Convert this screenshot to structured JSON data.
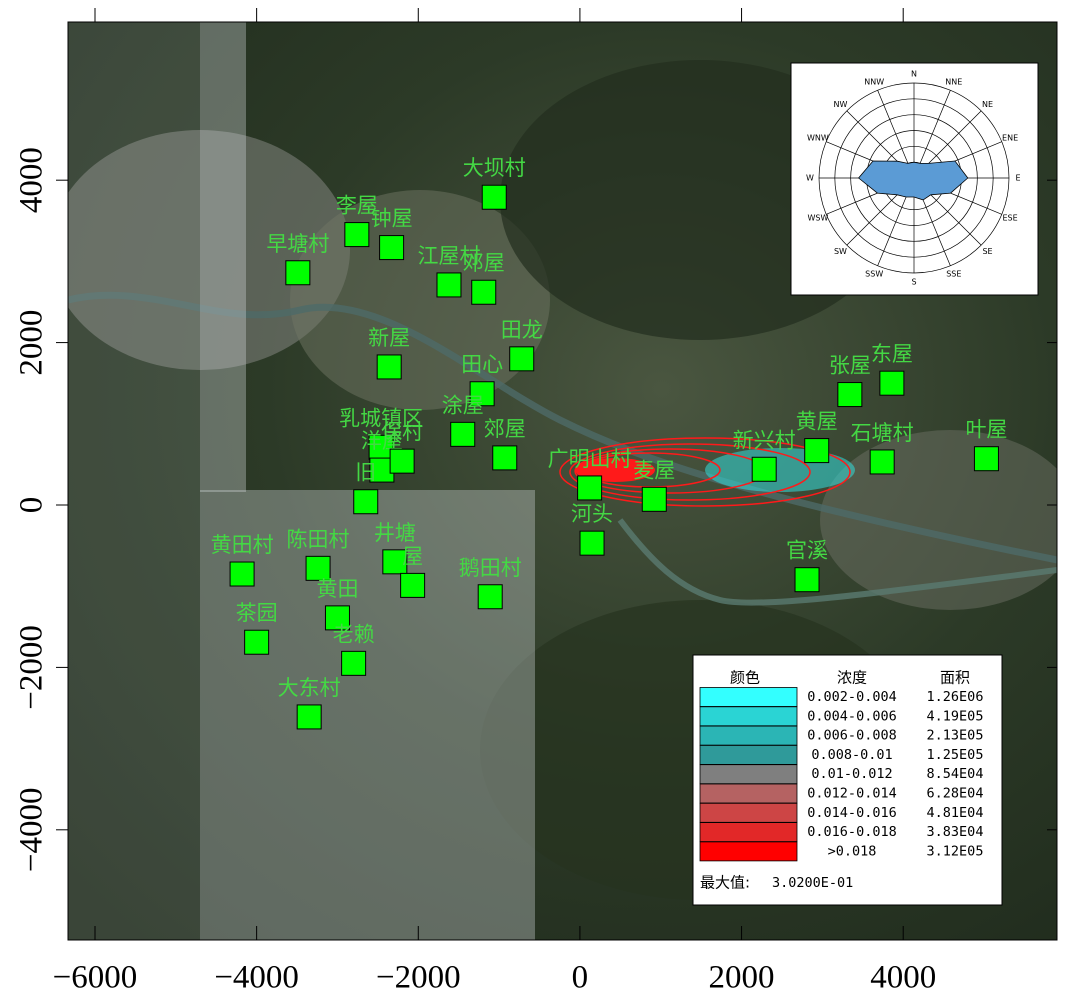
{
  "chart_data": {
    "type": "map",
    "xlim": [
      -6334,
      5903
    ],
    "ylim": [
      -5357,
      5948
    ],
    "xticks": [
      {
        "value": -6000,
        "label": "−6000"
      },
      {
        "value": -4000,
        "label": "−4000"
      },
      {
        "value": -2000,
        "label": "−2000"
      },
      0,
      2000,
      4000
    ],
    "yticks": [
      {
        "value": -4000,
        "label": "−4000"
      },
      {
        "value": -2000,
        "label": "−2000"
      },
      0,
      2000,
      4000
    ],
    "points": {
      "color": "#00ff00",
      "names": [
        "大坝村",
        "李屋",
        "钟屋",
        "早塘村",
        "江屋村",
        "邓屋",
        "新屋",
        "田龙",
        "田心",
        "乳城镇区",
        "洋屋",
        "保村",
        "涂屋",
        "郊屋",
        "旧",
        "广明山村",
        "麦屋",
        "新兴村",
        "黄屋",
        "石塘村",
        "张屋",
        "东屋",
        "叶屋",
        "河头",
        "官溪",
        "黄田村",
        "陈田村",
        "井塘",
        "屋",
        "鹅田村",
        "黄田",
        "茶园",
        "老赖",
        "大东村"
      ],
      "x": [
        -1060,
        -2760,
        -2330,
        -3490,
        -1620,
        -1190,
        -2360,
        -720,
        -1210,
        -2460,
        -2450,
        -2200,
        -1450,
        -930,
        -2650,
        120,
        920,
        2280,
        2930,
        3740,
        3340,
        3860,
        5030,
        150,
        2810,
        -4180,
        -3240,
        -2290,
        -2070,
        -1110,
        -3000,
        -4000,
        -2800,
        -3350
      ],
      "y": [
        3790,
        3330,
        3170,
        2860,
        2710,
        2620,
        1700,
        1800,
        1370,
        710,
        430,
        540,
        870,
        580,
        40,
        210,
        70,
        440,
        670,
        530,
        1360,
        1500,
        570,
        -470,
        -920,
        -850,
        -780,
        -700,
        -990,
        -1130,
        -1390,
        -1690,
        -1950,
        -2610
      ]
    },
    "legend": {
      "headers": [
        "颜色",
        "浓度",
        "面积"
      ],
      "rows": [
        {
          "range": "0.002-0.004",
          "area": "1.26E06",
          "color": "#33ffff"
        },
        {
          "range": "0.004-0.006",
          "area": "4.19E05",
          "color": "#2ad4d4"
        },
        {
          "range": "0.006-0.008",
          "area": "2.13E05",
          "color": "#2bb5b5"
        },
        {
          "range": "0.008-0.01",
          "area": "1.25E05",
          "color": "#2f9a9a"
        },
        {
          "range": "0.01-0.012",
          "area": "8.54E04",
          "color": "#7f7f7f"
        },
        {
          "range": "0.012-0.014",
          "area": "6.28E04",
          "color": "#b56262"
        },
        {
          "range": "0.014-0.016",
          "area": "4.81E04",
          "color": "#cd4545"
        },
        {
          "range": "0.016-0.018",
          "area": "3.83E04",
          "color": "#e22828"
        },
        {
          "range": ">0.018",
          "area": "3.12E05",
          "color": "#ff0000"
        }
      ],
      "max_label": "最大值:",
      "max_value": "3.0200E-01"
    },
    "wind_rose": {
      "directions": [
        "N",
        "NNE",
        "NE",
        "ENE",
        "E",
        "ESE",
        "SE",
        "SSE",
        "S",
        "SSW",
        "SW",
        "WSW",
        "W",
        "WNW",
        "NW",
        "NNW"
      ],
      "values": [
        1.0,
        1.0,
        1.3,
        2.8,
        3.4,
        2.5,
        1.5,
        1.5,
        1.2,
        1.3,
        1.5,
        2.5,
        3.5,
        2.8,
        1.5,
        1.0
      ],
      "rlim": [
        0,
        6
      ],
      "rings": 6,
      "color": "#5b9bd5"
    }
  }
}
